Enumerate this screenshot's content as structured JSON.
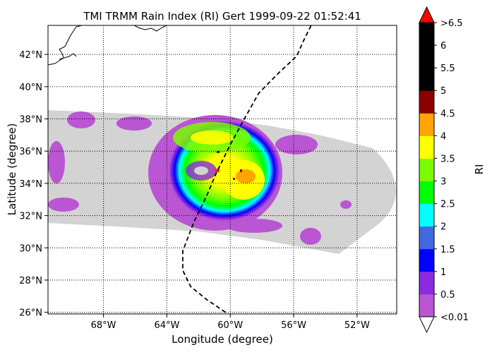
{
  "chart_data": {
    "type": "heatmap",
    "title": "TMI TRMM Rain Index (RI) Gert 1999-09-22 01:52:41",
    "xlabel": "Longitude (degree)",
    "ylabel": "Latitude (degree)",
    "xlim": [
      -71.5,
      -49.5
    ],
    "ylim": [
      25.9,
      43.8
    ],
    "x_ticks": [
      {
        "value": -68,
        "label": "68°W"
      },
      {
        "value": -64,
        "label": "64°W"
      },
      {
        "value": -60,
        "label": "60°W"
      },
      {
        "value": -56,
        "label": "56°W"
      },
      {
        "value": -52,
        "label": "52°W"
      }
    ],
    "y_ticks": [
      {
        "value": 26,
        "label": "26°N"
      },
      {
        "value": 28,
        "label": "28°N"
      },
      {
        "value": 30,
        "label": "30°N"
      },
      {
        "value": 32,
        "label": "32°N"
      },
      {
        "value": 34,
        "label": "34°N"
      },
      {
        "value": 36,
        "label": "36°N"
      },
      {
        "value": 38,
        "label": "38°N"
      },
      {
        "value": 40,
        "label": "40°N"
      },
      {
        "value": 42,
        "label": "42°N"
      }
    ],
    "grid": true,
    "colorbar": {
      "label": "RI",
      "extend_low_color": "#ffffff",
      "extend_high_color": "#ff0000",
      "colors": [
        "#ba55d3",
        "#8a2be2",
        "#0000ff",
        "#4169e1",
        "#00ffff",
        "#00ff00",
        "#7cfc00",
        "#ffff00",
        "#ffa500",
        "#8b0000",
        "#000000",
        "#000000",
        "#000000"
      ],
      "tick_labels": [
        "<0.01",
        "0.5",
        "1",
        "1.5",
        "2",
        "2.5",
        "3",
        "3.5",
        "4",
        "4.5",
        "5",
        "5.5",
        "6",
        ">6.5"
      ]
    },
    "swath_color": "#d3d3d3",
    "track": {
      "style": "dashed",
      "color": "#000000",
      "lon": [
        -60.3,
        -61.5,
        -62.5,
        -63.0,
        -63.0,
        -62.3,
        -61.5,
        -60.9,
        -60.0,
        -59.0,
        -58.2,
        -57.0,
        -55.8,
        -55.4,
        -55.2,
        -54.9
      ],
      "lat": [
        26.0,
        26.8,
        27.6,
        28.6,
        29.8,
        31.6,
        33.2,
        34.6,
        36.4,
        38.2,
        39.6,
        40.8,
        41.9,
        42.8,
        43.2,
        43.8
      ]
    },
    "storm_center": {
      "lon": -60.8,
      "lat": 34.8,
      "marker_color": "#ff0000"
    }
  }
}
